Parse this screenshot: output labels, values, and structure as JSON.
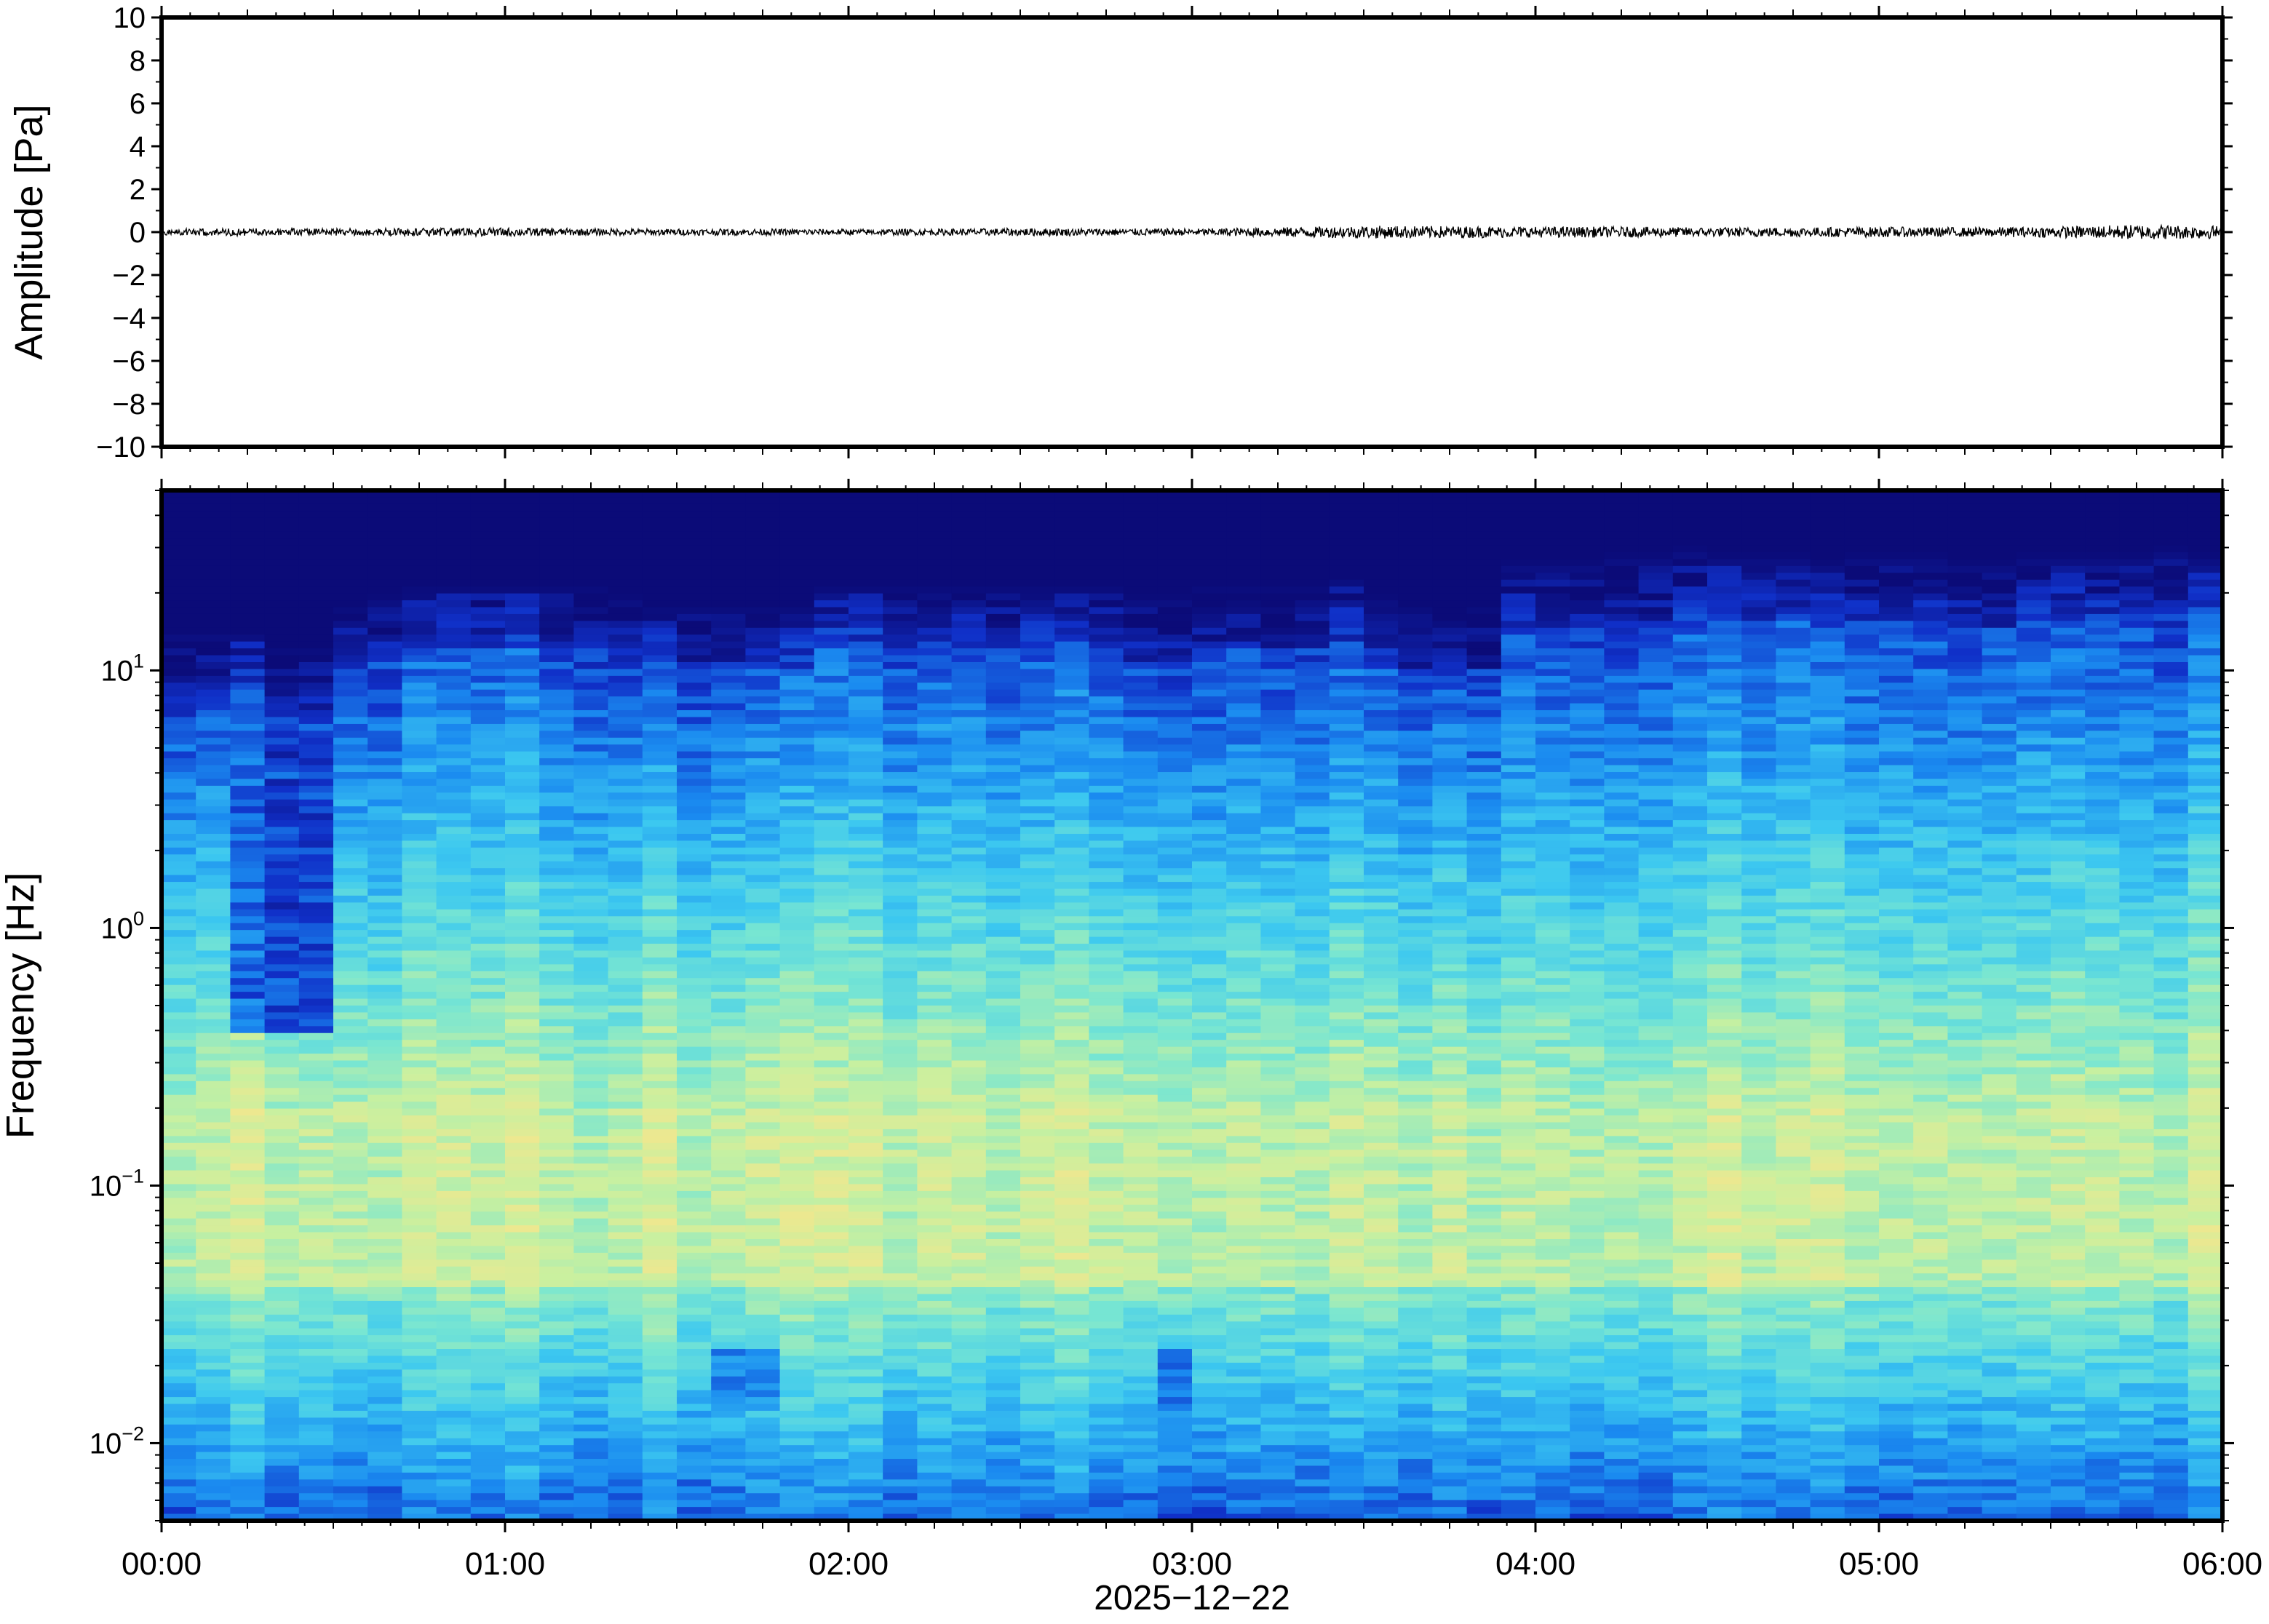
{
  "chart_data": [
    {
      "type": "line",
      "ylabel": "Amplitude [Pa]",
      "ylim": [
        -10,
        10
      ],
      "yticks": [
        10,
        8,
        6,
        4,
        2,
        0,
        -2,
        -4,
        -6,
        -8,
        -10
      ],
      "ytick_labels": [
        "10",
        "8",
        "6",
        "4",
        "2",
        "0",
        "−2",
        "−4",
        "−6",
        "−8",
        "−10"
      ],
      "xlim_hours": [
        0,
        6
      ],
      "xtick_labels": [
        "00:00",
        "01:00",
        "02:00",
        "03:00",
        "04:00",
        "05:00",
        "06:00"
      ],
      "grid": false,
      "series": [
        {
          "color": "#000000",
          "x_hours": [
            0,
            0.25,
            0.5,
            0.75,
            1.0,
            1.25,
            1.5,
            1.75,
            2.0,
            2.25,
            2.5,
            2.75,
            3.0,
            3.25,
            3.5,
            3.75,
            4.0,
            4.25,
            4.5,
            4.75,
            5.0,
            5.25,
            5.5,
            5.75,
            6.0
          ],
          "envelope_pa": [
            0.15,
            0.18,
            0.16,
            0.18,
            0.2,
            0.16,
            0.15,
            0.15,
            0.14,
            0.15,
            0.18,
            0.17,
            0.16,
            0.22,
            0.3,
            0.28,
            0.25,
            0.25,
            0.22,
            0.22,
            0.24,
            0.22,
            0.25,
            0.35,
            0.3
          ]
        }
      ]
    },
    {
      "type": "heatmap",
      "ylabel": "Frequency [Hz]",
      "xlabel": "2025−12−22",
      "yscale": "log",
      "ylim_hz": [
        0.005,
        50
      ],
      "yticks_hz": [
        10,
        1,
        0.1,
        0.01
      ],
      "ytick_labels": [
        {
          "base": "10",
          "exp": "1"
        },
        {
          "base": "10",
          "exp": "0"
        },
        {
          "base": "10",
          "exp": "−1"
        },
        {
          "base": "10",
          "exp": "−2"
        }
      ],
      "xlim_hours": [
        0,
        6
      ],
      "xtick_labels": [
        "00:00",
        "01:00",
        "02:00",
        "03:00",
        "04:00",
        "05:00",
        "06:00"
      ],
      "colormap": [
        "#0b0b78",
        "#1030c8",
        "#1a8af0",
        "#3cc8f0",
        "#78e6d2",
        "#c8f0a0",
        "#f5e68c",
        "#f5be78"
      ],
      "columns_per_hour": 10,
      "upper_cutoff_hz": [
        8,
        8,
        8,
        7,
        7,
        10,
        11,
        12,
        12,
        12,
        12,
        12,
        12,
        11,
        10,
        10,
        10,
        10,
        10,
        12,
        12,
        12,
        12,
        12,
        12,
        12,
        12,
        12,
        11,
        11,
        12,
        12,
        12,
        12,
        13,
        11,
        10,
        9,
        10,
        15,
        15,
        15,
        16,
        16,
        17,
        16,
        16,
        16,
        15,
        16,
        16,
        16,
        15,
        15,
        16,
        16,
        16,
        16,
        17,
        16
      ],
      "quiet_notch": {
        "start_hours": 0.25,
        "end_hours": 0.47,
        "top_hz": 10,
        "bottom_hz": 0.4
      },
      "warm_band_hz": [
        0.04,
        0.2
      ],
      "low_freq_dips": [
        {
          "hour": 1.72,
          "hz": 0.018
        },
        {
          "hour": 2.95,
          "hz": 0.018
        },
        {
          "hour": 5.6,
          "hz": 0.007
        }
      ]
    }
  ]
}
